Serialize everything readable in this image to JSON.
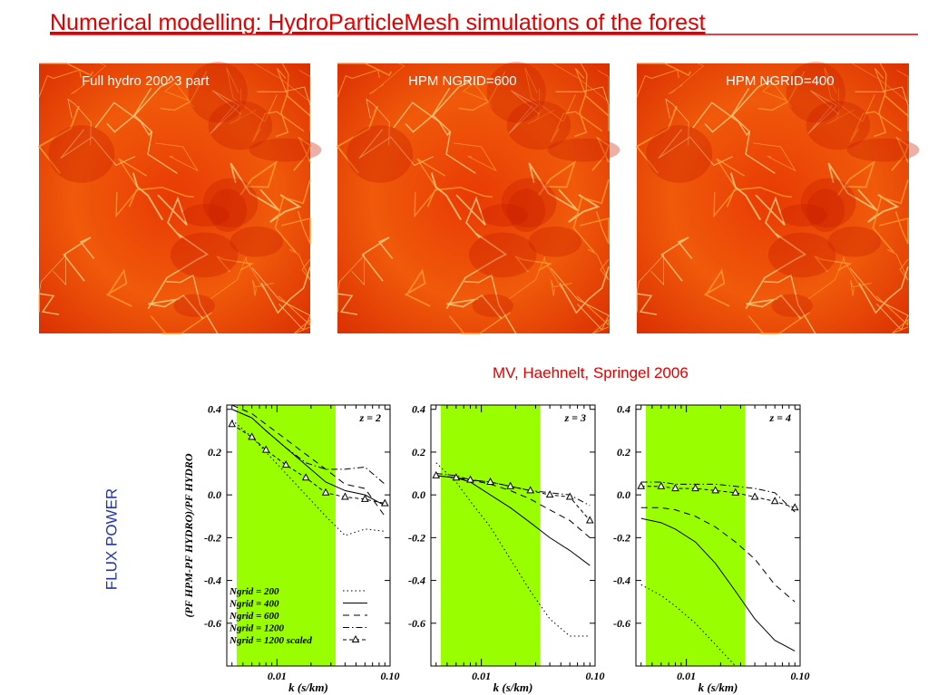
{
  "title": "Numerical modelling: HydroParticleMesh simulations of the forest",
  "images": [
    {
      "caption": "Full hydro  200^3 part"
    },
    {
      "caption": "HPM   NGRID=600"
    },
    {
      "caption": "HPM   NGRID=400"
    }
  ],
  "credit": "MV, Haehnelt, Springel  2006",
  "side_label": "FLUX POWER",
  "chart_data": [
    {
      "type": "line",
      "annotation": "z = 2",
      "xlabel": "k (s/km)",
      "ylabel": "(PF HPM-PF HYDRO)/PF HYDRO",
      "log_x": true,
      "xlim": [
        0.0036,
        0.1
      ],
      "xticks": [
        0.01,
        {
          "value": 0.1,
          "label": "0.10"
        }
      ],
      "ylim": [
        -0.8,
        0.42
      ],
      "yticks": [
        0.4,
        0.2,
        {
          "value": 0,
          "label": "0.0"
        },
        -0.2,
        -0.4,
        -0.6
      ],
      "shaded_range": [
        0.0044,
        0.033
      ],
      "shade_color": "#99ff00",
      "legend": "lower left",
      "x": [
        0.004,
        0.006,
        0.008,
        0.012,
        0.018,
        0.027,
        0.04,
        0.06,
        0.09
      ],
      "series": [
        {
          "name": "Ngrid = 200",
          "color": "#000000",
          "style": "dotted",
          "values": [
            0.35,
            0.27,
            0.2,
            0.1,
            0.0,
            -0.1,
            -0.19,
            -0.16,
            -0.17
          ]
        },
        {
          "name": "Ngrid = 400",
          "color": "#000000",
          "style": "solid",
          "values": [
            0.4,
            0.36,
            0.3,
            0.22,
            0.14,
            0.06,
            0.02,
            0.0,
            -0.05
          ]
        },
        {
          "name": "Ngrid = 600",
          "color": "#000000",
          "style": "dashed",
          "values": [
            0.42,
            0.38,
            0.33,
            0.26,
            0.19,
            0.12,
            0.05,
            0.03,
            -0.1
          ]
        },
        {
          "name": "Ngrid = 1200",
          "color": "#000000",
          "style": "dashdot",
          "values": [
            0.4,
            0.36,
            0.3,
            0.22,
            0.15,
            0.12,
            0.12,
            0.13,
            0.05
          ]
        },
        {
          "name": "Ngrid = 1200 scaled",
          "color": "#000000",
          "style": "triangle",
          "values": [
            0.33,
            0.27,
            0.21,
            0.14,
            0.08,
            0.01,
            -0.01,
            -0.02,
            -0.04
          ]
        }
      ]
    },
    {
      "type": "line",
      "annotation": "z = 3",
      "xlabel": "k (s/km)",
      "log_x": true,
      "xlim": [
        0.0036,
        0.1
      ],
      "xticks": [
        0.01,
        {
          "value": 0.1,
          "label": "0.10"
        }
      ],
      "ylim": [
        -0.8,
        0.42
      ],
      "yticks": [
        0.4,
        0.2,
        {
          "value": 0,
          "label": "0.0"
        },
        -0.2,
        -0.4,
        -0.6
      ],
      "shaded_range": [
        0.0044,
        0.033
      ],
      "shade_color": "#99ff00",
      "x": [
        0.004,
        0.006,
        0.008,
        0.012,
        0.018,
        0.027,
        0.04,
        0.06,
        0.09
      ],
      "series": [
        {
          "color": "#000000",
          "style": "dotted",
          "values": [
            0.15,
            0.06,
            -0.03,
            -0.15,
            -0.3,
            -0.45,
            -0.58,
            -0.66,
            -0.66
          ]
        },
        {
          "color": "#000000",
          "style": "solid",
          "values": [
            0.09,
            0.08,
            0.06,
            0.0,
            -0.06,
            -0.13,
            -0.2,
            -0.26,
            -0.33
          ]
        },
        {
          "color": "#000000",
          "style": "dashed",
          "values": [
            0.09,
            0.08,
            0.07,
            0.05,
            0.02,
            -0.02,
            -0.07,
            -0.12,
            -0.2
          ]
        },
        {
          "color": "#000000",
          "style": "dashdot",
          "values": [
            0.1,
            0.09,
            0.07,
            0.06,
            0.04,
            0.02,
            0.01,
            0.0,
            -0.05
          ]
        },
        {
          "color": "#000000",
          "style": "triangle",
          "values": [
            0.09,
            0.08,
            0.07,
            0.06,
            0.04,
            0.02,
            0.0,
            -0.01,
            -0.12
          ]
        }
      ]
    },
    {
      "type": "line",
      "annotation": "z = 4",
      "xlabel": "k (s/km)",
      "log_x": true,
      "xlim": [
        0.0036,
        0.1
      ],
      "xticks": [
        0.01,
        {
          "value": 0.1,
          "label": "0.10"
        }
      ],
      "ylim": [
        -0.8,
        0.42
      ],
      "yticks": [
        0.4,
        0.2,
        {
          "value": 0,
          "label": "0.0"
        },
        -0.2,
        -0.4,
        -0.6
      ],
      "shaded_range": [
        0.0044,
        0.033
      ],
      "shade_color": "#99ff00",
      "x": [
        0.004,
        0.006,
        0.008,
        0.012,
        0.018,
        0.027,
        0.04,
        0.06,
        0.09
      ],
      "series": [
        {
          "color": "#000000",
          "style": "dotted",
          "values": [
            -0.42,
            -0.47,
            -0.52,
            -0.6,
            -0.7,
            -0.8,
            null,
            null,
            null
          ]
        },
        {
          "color": "#000000",
          "style": "solid",
          "values": [
            -0.11,
            -0.13,
            -0.16,
            -0.22,
            -0.32,
            -0.45,
            -0.58,
            -0.68,
            -0.73
          ]
        },
        {
          "color": "#000000",
          "style": "dashed",
          "values": [
            -0.06,
            -0.06,
            -0.07,
            -0.1,
            -0.15,
            -0.22,
            -0.3,
            -0.42,
            -0.5
          ]
        },
        {
          "color": "#000000",
          "style": "dashdot",
          "values": [
            0.06,
            0.06,
            0.05,
            0.05,
            0.05,
            0.04,
            0.03,
            0.01,
            -0.08
          ]
        },
        {
          "color": "#000000",
          "style": "triangle",
          "values": [
            0.04,
            0.04,
            0.03,
            0.03,
            0.02,
            0.01,
            -0.01,
            -0.03,
            -0.06
          ]
        }
      ]
    }
  ]
}
